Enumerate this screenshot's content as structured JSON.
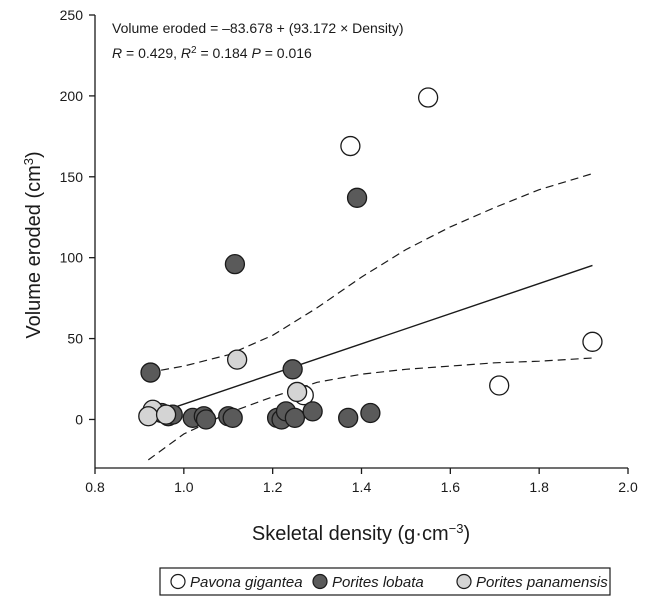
{
  "chart_data": {
    "type": "scatter",
    "xlabel": "Skeletal density (g·cm⁻³)",
    "ylabel": "Volume eroded (cm³)",
    "xlim": [
      0.8,
      2.0
    ],
    "ylim": [
      -30,
      250
    ],
    "x_ticks": [
      "0.8",
      "1.0",
      "1.2",
      "1.4",
      "1.6",
      "1.8",
      "2.0"
    ],
    "y_ticks": [
      "0",
      "50",
      "100",
      "150",
      "200",
      "250"
    ],
    "equation": "Volume eroded = –83.678 + (93.172 × Density)",
    "stats": "R = 0.429, R² = 0.184   P = 0.016",
    "grid": false,
    "legend_position": "bottom",
    "regression": {
      "intercept": -83.678,
      "slope": 93.172,
      "x_range": [
        0.92,
        1.92
      ]
    },
    "confidence_band": {
      "upper": [
        [
          0.92,
          29
        ],
        [
          1.0,
          33
        ],
        [
          1.1,
          40
        ],
        [
          1.2,
          52
        ],
        [
          1.3,
          69
        ],
        [
          1.4,
          88
        ],
        [
          1.5,
          105
        ],
        [
          1.6,
          119
        ],
        [
          1.7,
          131
        ],
        [
          1.8,
          142
        ],
        [
          1.92,
          152
        ]
      ],
      "lower": [
        [
          0.92,
          -25
        ],
        [
          1.0,
          -9
        ],
        [
          1.1,
          4
        ],
        [
          1.2,
          14
        ],
        [
          1.3,
          23
        ],
        [
          1.4,
          28
        ],
        [
          1.5,
          31
        ],
        [
          1.6,
          33
        ],
        [
          1.7,
          35
        ],
        [
          1.8,
          36
        ],
        [
          1.92,
          38
        ]
      ]
    },
    "series": [
      {
        "name": "Pavona gigantea",
        "fill": "#ffffff",
        "points": [
          [
            1.55,
            199
          ],
          [
            1.375,
            169
          ],
          [
            1.92,
            48
          ],
          [
            1.71,
            21
          ],
          [
            1.27,
            15
          ]
        ]
      },
      {
        "name": "Porites lobata",
        "fill": "#5a5a5a",
        "points": [
          [
            1.39,
            137
          ],
          [
            1.115,
            96
          ],
          [
            0.925,
            29
          ],
          [
            1.245,
            31
          ],
          [
            0.95,
            4
          ],
          [
            0.965,
            2
          ],
          [
            0.975,
            3
          ],
          [
            1.02,
            1
          ],
          [
            1.045,
            2
          ],
          [
            1.05,
            0
          ],
          [
            1.1,
            2
          ],
          [
            1.11,
            1
          ],
          [
            1.21,
            1
          ],
          [
            1.22,
            0
          ],
          [
            1.23,
            5
          ],
          [
            1.25,
            1
          ],
          [
            1.29,
            5
          ],
          [
            1.37,
            1
          ],
          [
            1.42,
            4
          ]
        ]
      },
      {
        "name": "Porites panamensis",
        "fill": "#d4d4d4",
        "points": [
          [
            1.12,
            37
          ],
          [
            1.255,
            17
          ],
          [
            0.93,
            6
          ],
          [
            0.92,
            2
          ],
          [
            0.96,
            3
          ]
        ]
      }
    ]
  }
}
